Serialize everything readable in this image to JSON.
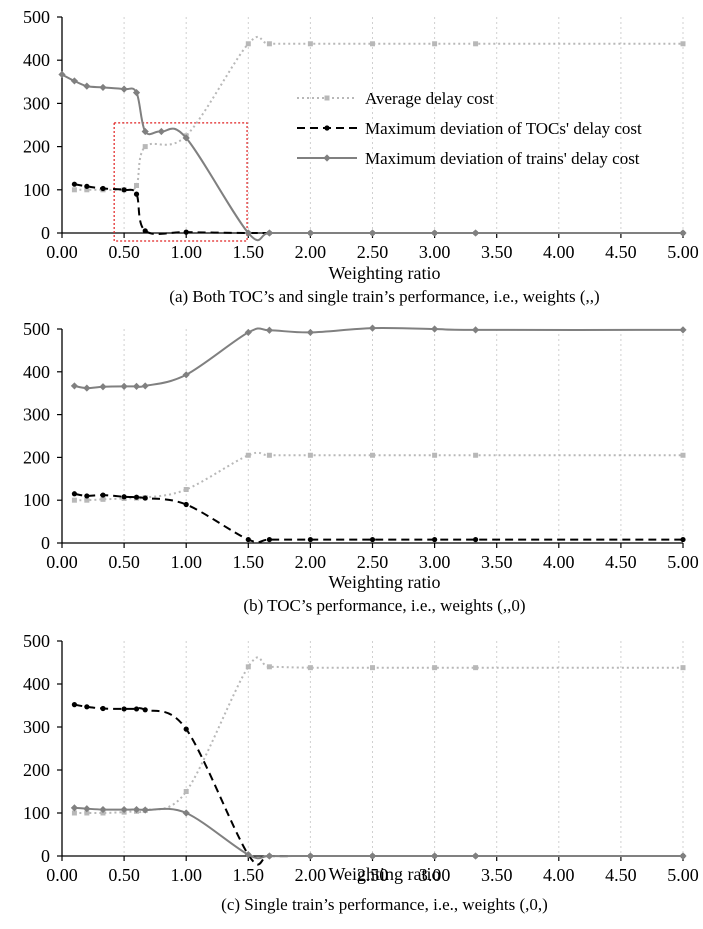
{
  "chart_data": [
    {
      "type": "line",
      "title": "(a) Both TOC’s and single train’s performance, i.e., weights (,,)",
      "xlabel": "Weighting ratio",
      "ylabel": "",
      "xlim": [
        0,
        5
      ],
      "ylim": [
        0,
        500
      ],
      "x_ticks": [
        "0.00",
        "0.50",
        "1.00",
        "1.50",
        "2.00",
        "2.50",
        "3.00",
        "3.50",
        "4.00",
        "4.50",
        "5.00"
      ],
      "y_ticks": [
        "0",
        "100",
        "200",
        "300",
        "400",
        "500"
      ],
      "grid": "vertical dotted",
      "legend_position": "right-center",
      "highlight_box": {
        "x": [
          0.42,
          1.49
        ],
        "y": [
          0,
          255
        ]
      },
      "series": [
        {
          "name": "Average delay cost",
          "style": "dotted",
          "color": "#b8b8b8",
          "marker": "square",
          "x": [
            0.1,
            0.2,
            0.33,
            0.5,
            0.6,
            0.67,
            1.0,
            1.5,
            1.67,
            2.0,
            2.5,
            3.0,
            3.33,
            5.0
          ],
          "y": [
            100,
            100,
            100,
            100,
            110,
            200,
            225,
            438,
            438,
            438,
            438,
            438,
            438,
            438
          ]
        },
        {
          "name": "Maximum deviation of TOCs' delay cost",
          "style": "dashed",
          "color": "#000000",
          "marker": "circle",
          "x": [
            0.1,
            0.2,
            0.33,
            0.5,
            0.6,
            0.67,
            1.0,
            1.5,
            1.67,
            2.0,
            2.5,
            3.0,
            3.33,
            5.0
          ],
          "y": [
            113,
            108,
            103,
            100,
            90,
            5,
            2,
            0,
            0,
            0,
            0,
            0,
            0,
            0
          ]
        },
        {
          "name": "Maximum deviation of trains' delay cost",
          "style": "solid",
          "color": "#808080",
          "marker": "diamond",
          "x": [
            0.0,
            0.1,
            0.2,
            0.33,
            0.5,
            0.6,
            0.67,
            0.8,
            1.0,
            1.5,
            1.67,
            2.0,
            2.5,
            3.0,
            3.33,
            5.0
          ],
          "y": [
            367,
            352,
            340,
            337,
            333,
            325,
            235,
            235,
            220,
            0,
            0,
            0,
            0,
            0,
            0,
            0
          ]
        }
      ]
    },
    {
      "type": "line",
      "title": "(b) TOC’s performance, i.e., weights (,,0)",
      "xlabel": "Weighting ratio",
      "ylabel": "",
      "xlim": [
        0,
        5
      ],
      "ylim": [
        0,
        500
      ],
      "x_ticks": [
        "0.00",
        "0.50",
        "1.00",
        "1.50",
        "2.00",
        "2.50",
        "3.00",
        "3.50",
        "4.00",
        "4.50",
        "5.00"
      ],
      "y_ticks": [
        "0",
        "100",
        "200",
        "300",
        "400",
        "500"
      ],
      "grid": "vertical dotted",
      "series": [
        {
          "name": "Average delay cost",
          "style": "dotted",
          "color": "#b8b8b8",
          "marker": "square",
          "x": [
            0.1,
            0.2,
            0.33,
            0.5,
            0.6,
            0.67,
            1.0,
            1.5,
            1.67,
            2.0,
            2.5,
            3.0,
            3.33,
            5.0
          ],
          "y": [
            100,
            100,
            102,
            104,
            105,
            106,
            125,
            205,
            205,
            205,
            205,
            205,
            205,
            205
          ]
        },
        {
          "name": "Maximum deviation of TOCs' delay cost",
          "style": "dashed",
          "color": "#000000",
          "marker": "circle",
          "x": [
            0.1,
            0.2,
            0.33,
            0.5,
            0.6,
            0.67,
            1.0,
            1.5,
            1.67,
            2.0,
            2.5,
            3.0,
            3.33,
            5.0
          ],
          "y": [
            115,
            110,
            112,
            108,
            107,
            105,
            90,
            8,
            8,
            8,
            8,
            8,
            8,
            8
          ]
        },
        {
          "name": "Maximum deviation of trains' delay cost",
          "style": "solid",
          "color": "#808080",
          "marker": "diamond",
          "x": [
            0.1,
            0.2,
            0.33,
            0.5,
            0.6,
            0.67,
            1.0,
            1.5,
            1.67,
            2.0,
            2.5,
            3.0,
            3.33,
            5.0
          ],
          "y": [
            367,
            362,
            365,
            366,
            366,
            367,
            393,
            492,
            497,
            492,
            502,
            500,
            498,
            498
          ]
        }
      ]
    },
    {
      "type": "line",
      "title": "(c) Single train’s performance, i.e., weights (,0,)",
      "xlabel": "Weighting ratio",
      "ylabel": "",
      "xlim": [
        0,
        5
      ],
      "ylim": [
        0,
        500
      ],
      "x_ticks": [
        "0.00",
        "0.50",
        "1.00",
        "1.50",
        "2.00",
        "2.50",
        "3.00",
        "3.50",
        "4.00",
        "4.50",
        "5.00"
      ],
      "y_ticks": [
        "0",
        "100",
        "200",
        "300",
        "400",
        "500"
      ],
      "grid": "vertical dotted",
      "series": [
        {
          "name": "Average delay cost",
          "style": "dotted",
          "color": "#b8b8b8",
          "marker": "square",
          "x": [
            0.1,
            0.2,
            0.33,
            0.5,
            0.6,
            0.67,
            1.0,
            1.5,
            1.67,
            2.0,
            2.5,
            3.0,
            3.33,
            5.0
          ],
          "y": [
            100,
            100,
            100,
            102,
            104,
            106,
            150,
            440,
            440,
            438,
            438,
            438,
            438,
            438
          ]
        },
        {
          "name": "Maximum deviation of TOCs' delay cost",
          "style": "dashed",
          "color": "#000000",
          "marker": "circle",
          "x": [
            0.1,
            0.2,
            0.33,
            0.5,
            0.6,
            0.67,
            1.0,
            1.5,
            1.67,
            2.0,
            2.5,
            3.0,
            3.33,
            5.0
          ],
          "y": [
            352,
            347,
            343,
            342,
            342,
            340,
            295,
            3,
            0,
            0,
            0,
            0,
            0,
            0
          ]
        },
        {
          "name": "Maximum deviation of trains' delay cost",
          "style": "solid",
          "color": "#808080",
          "marker": "diamond",
          "x": [
            0.1,
            0.2,
            0.33,
            0.5,
            0.6,
            0.67,
            1.0,
            1.5,
            1.67,
            2.0,
            2.5,
            3.0,
            3.33,
            5.0
          ],
          "y": [
            112,
            110,
            108,
            108,
            108,
            107,
            100,
            3,
            0,
            0,
            0,
            0,
            0,
            0
          ]
        }
      ]
    }
  ]
}
